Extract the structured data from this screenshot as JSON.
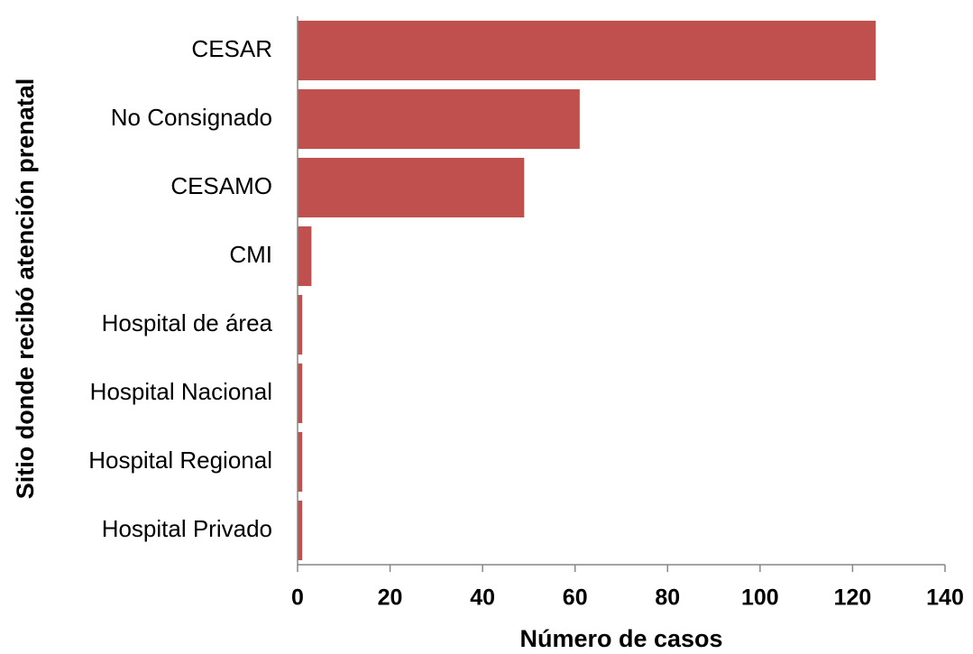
{
  "chart_data": {
    "type": "bar",
    "orientation": "horizontal",
    "xlabel": "Número de casos",
    "ylabel": "Sitio donde recibó atención prenatal",
    "categories": [
      "CESAR",
      "No Consignado",
      "CESAMO",
      "CMI",
      "Hospital de área",
      "Hospital Nacional",
      "Hospital Regional",
      "Hospital Privado"
    ],
    "values": [
      125,
      61,
      49,
      3,
      1,
      1,
      1,
      1
    ],
    "color": "#c0504d",
    "xlim": [
      0,
      140
    ],
    "xticks": [
      0,
      20,
      40,
      60,
      80,
      100,
      120,
      140
    ],
    "grid": false
  }
}
